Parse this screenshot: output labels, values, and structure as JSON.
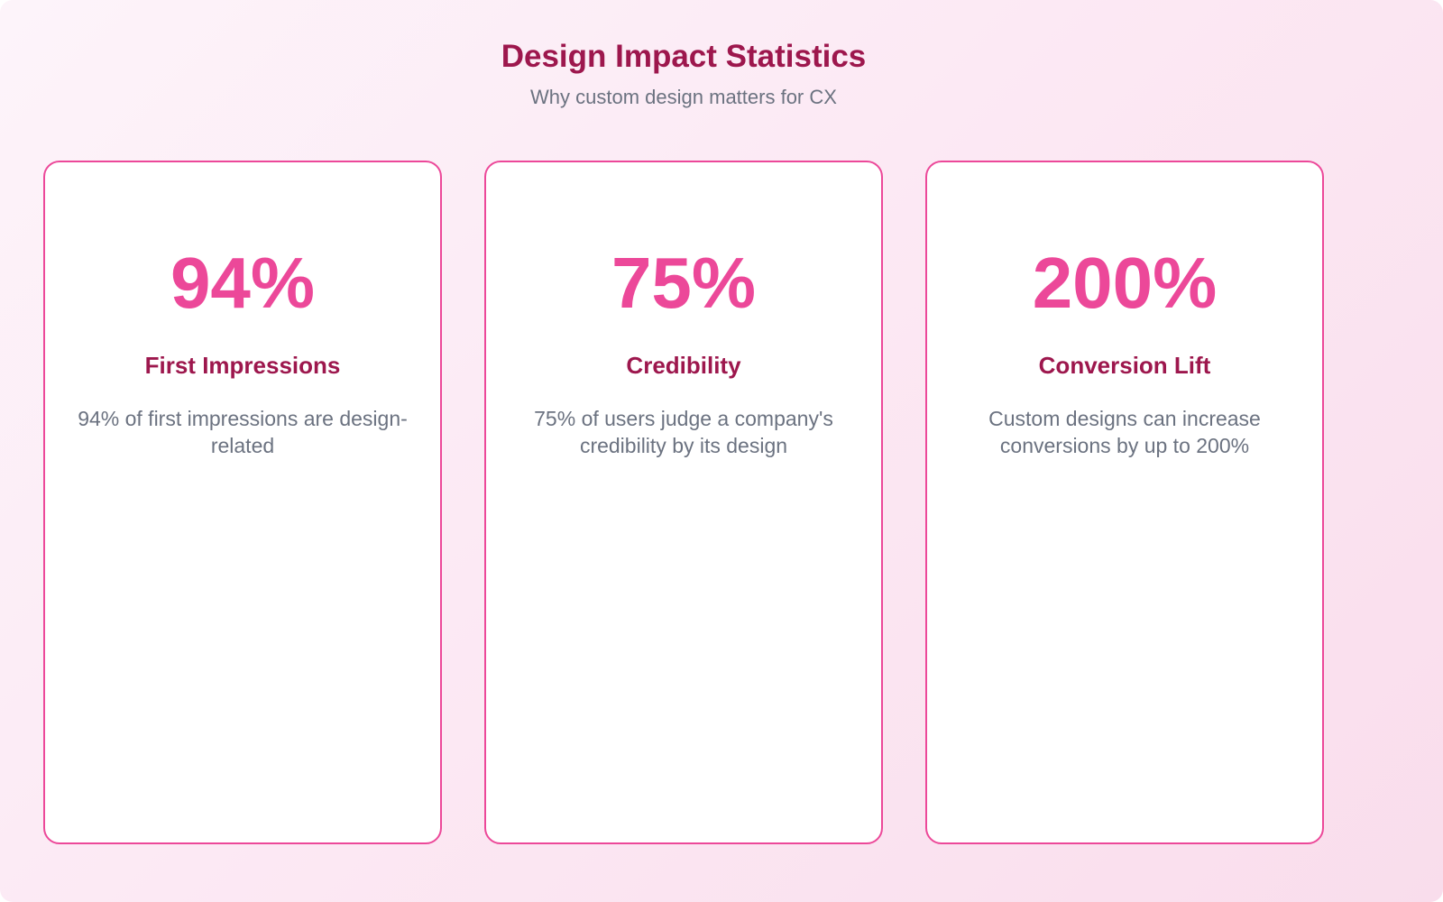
{
  "header": {
    "title": "Design Impact Statistics",
    "subtitle": "Why custom design matters for CX"
  },
  "cards": [
    {
      "value": "94%",
      "label": "First Impressions",
      "description": "94% of first impressions are design-related"
    },
    {
      "value": "75%",
      "label": "Credibility",
      "description": "75% of users judge a company's credibility by its design"
    },
    {
      "value": "200%",
      "label": "Conversion Lift",
      "description": "Custom designs can increase conversions by up to 200%"
    }
  ],
  "colors": {
    "accent_pink": "#EC4899",
    "heading_maroon": "#9D174D",
    "text_gray": "#6B7280",
    "card_background": "#FFFFFF"
  }
}
